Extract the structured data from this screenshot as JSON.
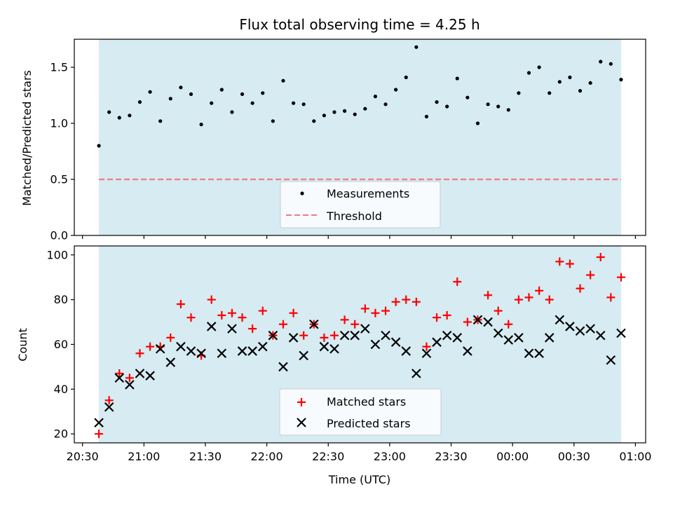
{
  "chart_data": [
    {
      "type": "scatter",
      "title": "Flux total observing time = 4.25 h",
      "xlabel": "",
      "ylabel": "Matched/Predicted stars",
      "ylim": [
        0,
        1.75
      ],
      "yticks": [
        "0.0",
        "0.5",
        "1.0",
        "1.5"
      ],
      "shaded_span": [
        "20:38",
        "24:53"
      ],
      "shaded_color": "#add8e6",
      "series": [
        {
          "name": "Measurements",
          "marker": "dot",
          "color": "#000000",
          "x": [
            "20:38",
            "20:43",
            "20:48",
            "20:53",
            "20:58",
            "21:03",
            "21:08",
            "21:13",
            "21:18",
            "21:23",
            "21:28",
            "21:33",
            "21:38",
            "21:43",
            "21:48",
            "21:53",
            "21:58",
            "22:03",
            "22:08",
            "22:13",
            "22:18",
            "22:23",
            "22:28",
            "22:33",
            "22:38",
            "22:43",
            "22:48",
            "22:53",
            "22:58",
            "23:03",
            "23:08",
            "23:13",
            "23:18",
            "23:23",
            "23:28",
            "23:33",
            "23:38",
            "23:43",
            "23:48",
            "23:53",
            "23:58",
            "24:03",
            "24:08",
            "24:13",
            "24:18",
            "24:23",
            "24:28",
            "24:33",
            "24:38",
            "24:43",
            "24:48",
            "24:53"
          ],
          "y": [
            0.8,
            1.1,
            1.05,
            1.07,
            1.19,
            1.28,
            1.02,
            1.22,
            1.32,
            1.26,
            0.99,
            1.18,
            1.3,
            1.1,
            1.26,
            1.18,
            1.27,
            1.02,
            1.38,
            1.18,
            1.17,
            1.02,
            1.07,
            1.1,
            1.11,
            1.08,
            1.13,
            1.24,
            1.17,
            1.3,
            1.41,
            1.68,
            1.06,
            1.19,
            1.15,
            1.4,
            1.23,
            1.0,
            1.17,
            1.15,
            1.12,
            1.27,
            1.45,
            1.5,
            1.27,
            1.37,
            1.41,
            1.29,
            1.36,
            1.55,
            1.53,
            1.39
          ]
        },
        {
          "name": "Threshold",
          "marker": "dashed-line",
          "color": "#f08080",
          "x": [
            "20:38",
            "24:53"
          ],
          "y": [
            0.5,
            0.5
          ]
        }
      ],
      "legend": "lower-center"
    },
    {
      "type": "scatter",
      "title": "",
      "xlabel": "Time (UTC)",
      "ylabel": "Count",
      "ylim": [
        16,
        104
      ],
      "yticks": [
        "20",
        "40",
        "60",
        "80",
        "100"
      ],
      "xlim": [
        "20:26",
        "25:05"
      ],
      "xticks": [
        "20:30",
        "21:00",
        "21:30",
        "22:00",
        "22:30",
        "23:00",
        "23:30",
        "00:00",
        "00:30",
        "01:00"
      ],
      "shaded_span": [
        "20:38",
        "24:53"
      ],
      "shaded_color": "#add8e6",
      "series": [
        {
          "name": "Matched stars",
          "marker": "plus",
          "color": "#ff0000",
          "x": [
            "20:38",
            "20:43",
            "20:48",
            "20:53",
            "20:58",
            "21:03",
            "21:08",
            "21:13",
            "21:18",
            "21:23",
            "21:28",
            "21:33",
            "21:38",
            "21:43",
            "21:48",
            "21:53",
            "21:58",
            "22:03",
            "22:08",
            "22:13",
            "22:18",
            "22:23",
            "22:28",
            "22:33",
            "22:38",
            "22:43",
            "22:48",
            "22:53",
            "22:58",
            "23:03",
            "23:08",
            "23:13",
            "23:18",
            "23:23",
            "23:28",
            "23:33",
            "23:38",
            "23:43",
            "23:48",
            "23:53",
            "23:58",
            "24:03",
            "24:08",
            "24:13",
            "24:18",
            "24:23",
            "24:28",
            "24:33",
            "24:38",
            "24:43",
            "24:48",
            "24:53"
          ],
          "y": [
            20,
            35,
            47,
            45,
            56,
            59,
            59,
            63,
            78,
            72,
            55,
            80,
            73,
            74,
            72,
            67,
            75,
            64,
            69,
            74,
            64,
            69,
            63,
            64,
            71,
            69,
            76,
            74,
            75,
            79,
            80,
            79,
            59,
            72,
            73,
            88,
            70,
            71,
            82,
            75,
            69,
            80,
            81,
            84,
            80,
            97,
            96,
            85,
            91,
            99,
            81,
            90
          ]
        },
        {
          "name": "Predicted stars",
          "marker": "x",
          "color": "#000000",
          "x": [
            "20:38",
            "20:43",
            "20:48",
            "20:53",
            "20:58",
            "21:03",
            "21:08",
            "21:13",
            "21:18",
            "21:23",
            "21:28",
            "21:33",
            "21:38",
            "21:43",
            "21:48",
            "21:53",
            "21:58",
            "22:03",
            "22:08",
            "22:13",
            "22:18",
            "22:23",
            "22:28",
            "22:33",
            "22:38",
            "22:43",
            "22:48",
            "22:53",
            "22:58",
            "23:03",
            "23:08",
            "23:13",
            "23:18",
            "23:23",
            "23:28",
            "23:33",
            "23:38",
            "23:43",
            "23:48",
            "23:53",
            "23:58",
            "24:03",
            "24:08",
            "24:13",
            "24:18",
            "24:23",
            "24:28",
            "24:33",
            "24:38",
            "24:43",
            "24:48",
            "24:53"
          ],
          "y": [
            25,
            32,
            45,
            42,
            47,
            46,
            58,
            52,
            59,
            57,
            56,
            68,
            56,
            67,
            57,
            57,
            59,
            64,
            50,
            63,
            55,
            69,
            59,
            58,
            64,
            64,
            67,
            60,
            64,
            61,
            57,
            47,
            56,
            61,
            64,
            63,
            57,
            71,
            70,
            65,
            62,
            63,
            56,
            56,
            63,
            71,
            68,
            66,
            67,
            64,
            53,
            65
          ]
        }
      ],
      "legend": "lower-center"
    }
  ]
}
